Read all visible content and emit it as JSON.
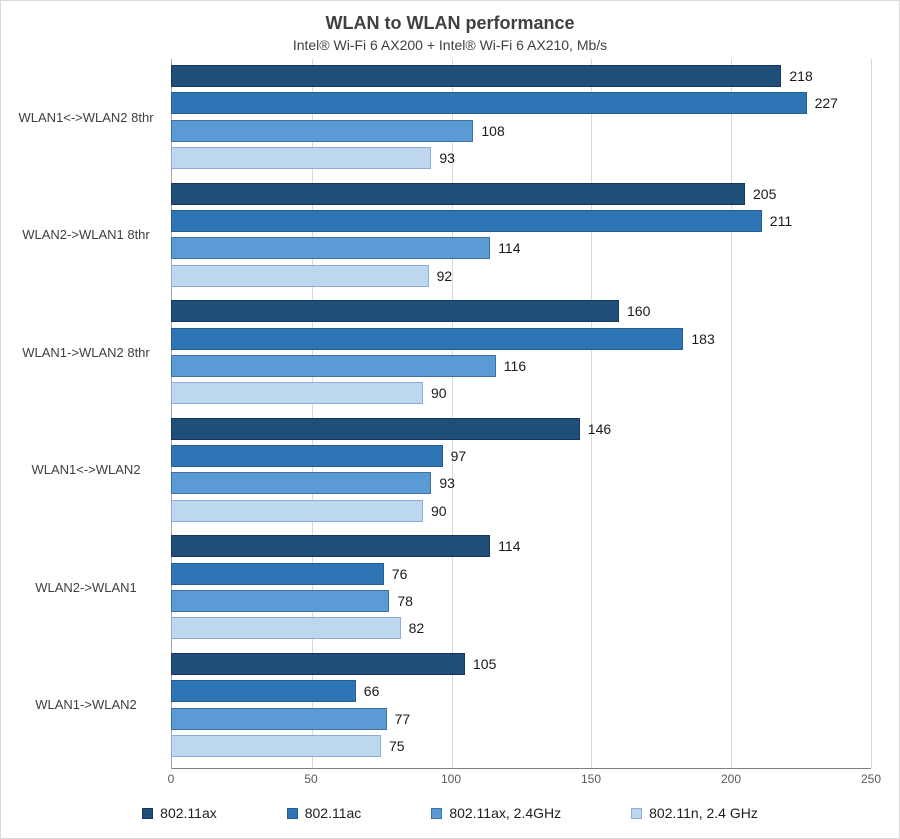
{
  "chart_data": {
    "type": "bar",
    "orientation": "horizontal",
    "title": "WLAN to WLAN performance",
    "subtitle": "Intel® Wi-Fi 6 AX200 + Intel® Wi-Fi 6 AX210, Mb/s",
    "categories": [
      "WLAN1<->WLAN2 8thr",
      "WLAN2->WLAN1 8thr",
      "WLAN1->WLAN2 8thr",
      "WLAN1<->WLAN2",
      "WLAN2->WLAN1",
      "WLAN1->WLAN2"
    ],
    "series": [
      {
        "name": "802.11ax",
        "color": "#1F4E79",
        "border": "#16365C",
        "values": [
          218,
          205,
          160,
          146,
          114,
          105
        ]
      },
      {
        "name": "802.11ac",
        "color": "#2E75B6",
        "border": "#255E93",
        "values": [
          227,
          211,
          183,
          97,
          76,
          66
        ]
      },
      {
        "name": "802.11ax, 2.4GHz",
        "color": "#5B9BD5",
        "border": "#41719C",
        "values": [
          108,
          114,
          116,
          93,
          78,
          77
        ]
      },
      {
        "name": "802.11n, 2.4 GHz",
        "color": "#BDD7EE",
        "border": "#8FAADC",
        "values": [
          93,
          92,
          90,
          90,
          82,
          75
        ]
      }
    ],
    "xlim": [
      0,
      250
    ],
    "xticks": [
      0,
      50,
      100,
      150,
      200,
      250
    ],
    "grid": true,
    "legend_position": "bottom"
  }
}
